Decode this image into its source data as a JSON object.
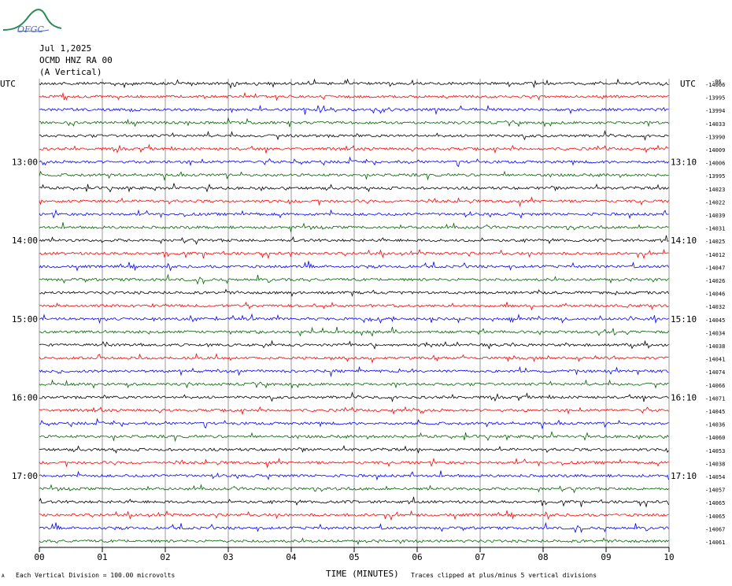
{
  "logo_text": "OFGC",
  "header": {
    "date": "Jul 1,2025",
    "station": "OCMD HNZ RA 00",
    "component": "(A Vertical)"
  },
  "footer": {
    "scale_note": "Each Vertical Division =  100.00 microvolts",
    "clip_note": "Traces clipped at plus/minus 5 vertical divisions",
    "corner_mark": "A"
  },
  "colors": {
    "black": "#000000",
    "red": "#ff0000",
    "blue": "#0000ff",
    "green": "#006400",
    "grid": "#808080"
  },
  "chart_data": {
    "type": "line",
    "title": "",
    "xlabel": "TIME (MINUTES)",
    "ylabel": "",
    "xlim": [
      0,
      10
    ],
    "x_ticks": [
      "00",
      "01",
      "02",
      "03",
      "04",
      "05",
      "06",
      "07",
      "08",
      "09",
      "10"
    ],
    "left_axis_label": "UTC",
    "right_axis_label": "UTC",
    "left_time_labels": [
      {
        "row": 6,
        "label": "13:00"
      },
      {
        "row": 12,
        "label": "14:00"
      },
      {
        "row": 18,
        "label": "15:00"
      },
      {
        "row": 24,
        "label": "16:00"
      },
      {
        "row": 30,
        "label": "17:00"
      }
    ],
    "right_time_labels": [
      {
        "row": 6,
        "label": "13:10"
      },
      {
        "row": 12,
        "label": "14:10"
      },
      {
        "row": 18,
        "label": "15:10"
      },
      {
        "row": 24,
        "label": "16:10"
      },
      {
        "row": 30,
        "label": "17:10"
      }
    ],
    "right_top_label": "-06",
    "trace_color_cycle": [
      "black",
      "red",
      "blue",
      "green"
    ],
    "trace_offsets": [
      -14006,
      -13995,
      -13994,
      -14033,
      -13990,
      -14009,
      -14006,
      -13995,
      -14023,
      -14022,
      -14039,
      -14031,
      -14025,
      -14012,
      -14047,
      -14026,
      -14046,
      -14032,
      -14045,
      -14034,
      -14038,
      -14041,
      -14074,
      -14066,
      -14071,
      -14045,
      -14036,
      -14060,
      -14053,
      -14038,
      -14054,
      -14057,
      -14065,
      -14065,
      -14067,
      -14061
    ],
    "trace_count": 36,
    "grid": true
  }
}
